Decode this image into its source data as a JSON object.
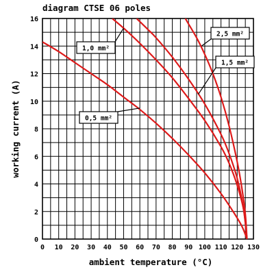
{
  "chart_data": {
    "type": "line",
    "title": "diagram CTSE 06 poles",
    "xlabel": "ambient temperature (°C)",
    "ylabel": "working current (A)",
    "xlim": [
      0,
      130
    ],
    "ylim": [
      0,
      16
    ],
    "x_ticks": [
      0,
      10,
      20,
      30,
      40,
      50,
      60,
      70,
      80,
      90,
      100,
      110,
      120,
      130
    ],
    "y_ticks": [
      0,
      2,
      4,
      6,
      8,
      10,
      12,
      14,
      16
    ],
    "grid": true,
    "series": [
      {
        "name": "0,5 mm²",
        "color": "#dd1a1a",
        "points": [
          [
            0,
            14.3
          ],
          [
            10,
            13.6
          ],
          [
            20,
            12.8
          ],
          [
            30,
            12.0
          ],
          [
            40,
            11.2
          ],
          [
            50,
            10.3
          ],
          [
            60,
            9.4
          ],
          [
            70,
            8.4
          ],
          [
            80,
            7.3
          ],
          [
            90,
            6.1
          ],
          [
            100,
            4.8
          ],
          [
            110,
            3.3
          ],
          [
            118,
            1.9
          ],
          [
            123,
            0.9
          ],
          [
            126,
            0.0
          ]
        ]
      },
      {
        "name": "1,0 mm²",
        "color": "#dd1a1a",
        "points": [
          [
            43,
            16.0
          ],
          [
            50,
            15.3
          ],
          [
            60,
            14.2
          ],
          [
            70,
            13.0
          ],
          [
            80,
            11.7
          ],
          [
            90,
            10.2
          ],
          [
            100,
            8.6
          ],
          [
            110,
            6.7
          ],
          [
            115,
            5.5
          ],
          [
            120,
            3.9
          ],
          [
            124,
            2.1
          ],
          [
            126,
            0.0
          ]
        ]
      },
      {
        "name": "1,5 mm²",
        "color": "#dd1a1a",
        "points": [
          [
            58,
            16.0
          ],
          [
            65,
            15.2
          ],
          [
            70,
            14.6
          ],
          [
            80,
            13.2
          ],
          [
            90,
            11.6
          ],
          [
            100,
            9.8
          ],
          [
            110,
            7.6
          ],
          [
            115,
            6.2
          ],
          [
            120,
            4.4
          ],
          [
            124,
            2.1
          ],
          [
            126,
            0.0
          ]
        ]
      },
      {
        "name": "2,5 mm²",
        "color": "#dd1a1a",
        "points": [
          [
            88,
            16.0
          ],
          [
            95,
            14.6
          ],
          [
            100,
            13.4
          ],
          [
            105,
            12.0
          ],
          [
            110,
            10.3
          ],
          [
            115,
            8.2
          ],
          [
            120,
            5.6
          ],
          [
            123,
            3.6
          ],
          [
            125,
            1.8
          ],
          [
            126,
            0.0
          ]
        ]
      }
    ],
    "annotations": [
      {
        "text": "1,0 mm²",
        "points_to": [
          50,
          15.3
        ]
      },
      {
        "text": "2,5 mm²",
        "points_to": [
          98,
          14.0
        ]
      },
      {
        "text": "1,5 mm²",
        "points_to": [
          96,
          10.5
        ]
      },
      {
        "text": "0,5 mm²",
        "points_to": [
          60,
          9.5
        ]
      }
    ]
  }
}
